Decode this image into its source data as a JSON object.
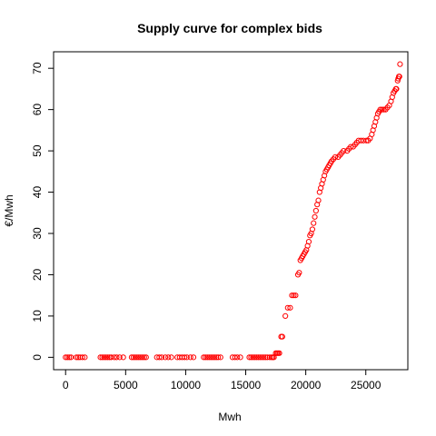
{
  "chart_data": {
    "type": "scatter",
    "title": "Supply curve for complex bids",
    "xlabel": "Mwh",
    "ylabel": "€/Mwh",
    "xlim": [
      -1000,
      28500
    ],
    "ylim": [
      -3,
      74
    ],
    "grid": false,
    "legend": "none",
    "colors": {
      "points": "#ff0000",
      "axes": "#000000",
      "background": "#ffffff"
    },
    "x_ticks": [
      0,
      5000,
      10000,
      15000,
      20000,
      25000
    ],
    "x_tick_labels": [
      "0",
      "5000",
      "10000",
      "15000",
      "20000",
      "25000"
    ],
    "y_ticks": [
      0,
      10,
      20,
      30,
      40,
      50,
      60,
      70
    ],
    "y_tick_labels": [
      "0",
      "10",
      "20",
      "30",
      "40",
      "50",
      "60",
      "70"
    ],
    "marker": "open-circle",
    "series": [
      {
        "x": [
          0,
          150,
          300,
          450,
          900,
          1050,
          1200,
          1400,
          1600,
          2900,
          3050,
          3200,
          3350,
          3500,
          3650,
          3800,
          4050,
          4250,
          4500,
          4800,
          5500,
          5650,
          5800,
          5950,
          6100,
          6250,
          6400,
          6550,
          6700,
          7600,
          7800,
          8000,
          8300,
          8550,
          8800,
          9300,
          9500,
          9700,
          9900,
          10100,
          10400,
          10650,
          11500,
          11650,
          11800,
          11950,
          12100,
          12250,
          12400,
          12550,
          12700,
          12900,
          13900,
          14100,
          14300,
          14550,
          15300,
          15450,
          15600,
          15750,
          15900,
          16050,
          16200,
          16350,
          16500,
          16650,
          16800,
          17000,
          17150,
          17250,
          17350,
          17500,
          17600,
          17700,
          17800,
          17950,
          18050,
          18300,
          18500,
          18700,
          18850,
          19000,
          19150,
          19350,
          19450,
          19550,
          19650,
          19750,
          19850,
          19950,
          20050,
          20150,
          20250,
          20350,
          20450,
          20550,
          20650,
          20750,
          20850,
          20950,
          21050,
          21150,
          21250,
          21350,
          21450,
          21550,
          21650,
          21750,
          21850,
          21950,
          22050,
          22150,
          22300,
          22450,
          22700,
          22850,
          23000,
          23150,
          23450,
          23600,
          23750,
          23950,
          24100,
          24250,
          24400,
          24600,
          24800,
          25050,
          25200,
          25350,
          25500,
          25600,
          25700,
          25800,
          25900,
          26000,
          26100,
          26200,
          26350,
          26500,
          26650,
          26800,
          26950,
          27100,
          27200,
          27300,
          27400,
          27500,
          27550,
          27650,
          27700,
          27750,
          27800,
          27850
        ],
        "y": [
          0,
          0,
          0,
          0,
          0,
          0,
          0,
          0,
          0,
          0,
          0,
          0,
          0,
          0,
          0,
          0,
          0,
          0,
          0,
          0,
          0,
          0,
          0,
          0,
          0,
          0,
          0,
          0,
          0,
          0,
          0,
          0,
          0,
          0,
          0,
          0,
          0,
          0,
          0,
          0,
          0,
          0,
          0,
          0,
          0,
          0,
          0,
          0,
          0,
          0,
          0,
          0,
          0,
          0,
          0,
          0,
          0,
          0,
          0,
          0,
          0,
          0,
          0,
          0,
          0,
          0,
          0,
          0,
          0,
          0,
          0,
          1,
          1,
          1,
          1,
          5,
          5,
          10,
          12,
          12,
          15,
          15,
          15,
          20,
          20.5,
          23.5,
          24,
          24.5,
          25,
          25.5,
          26,
          27,
          28,
          29.5,
          30,
          31,
          32.5,
          34,
          35.5,
          37,
          38,
          40,
          41,
          42,
          43,
          44,
          45,
          45.5,
          46,
          46.5,
          47,
          47.5,
          48,
          48.5,
          48.5,
          49,
          49.5,
          50,
          50,
          50.5,
          51,
          51,
          51.5,
          52,
          52.5,
          52.5,
          52.5,
          52.5,
          52.5,
          53,
          54,
          55,
          56,
          57,
          58,
          59,
          59.5,
          60,
          60,
          60,
          60,
          60.5,
          61,
          62,
          63,
          64,
          64.5,
          65,
          65,
          67,
          67.5,
          68,
          68,
          71
        ]
      }
    ]
  }
}
